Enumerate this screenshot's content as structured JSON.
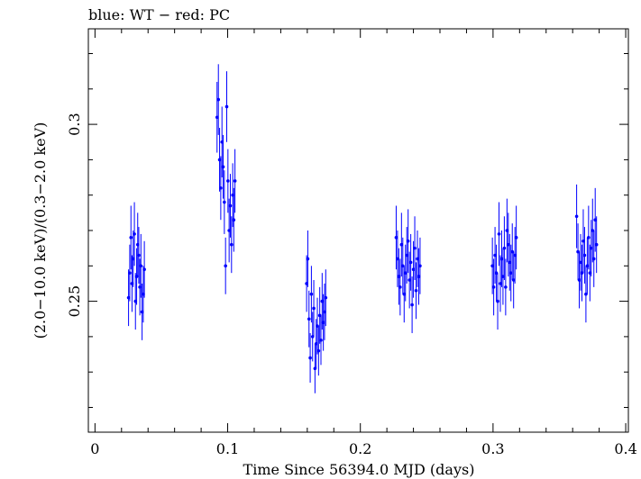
{
  "chart_data": {
    "type": "scatter",
    "title": "blue: WT − red: PC",
    "xlabel": "Time Since 56394.0 MJD (days)",
    "ylabel": "(2.0−10.0 keV)/(0.3−2.0 keV)",
    "xlim": [
      -0.005,
      0.402
    ],
    "ylim": [
      0.213,
      0.327
    ],
    "x_ticks": [
      0,
      0.1,
      0.2,
      0.3,
      0.4
    ],
    "x_tick_labels": [
      "0",
      "0.1",
      "0.2",
      "0.3",
      "0.4"
    ],
    "y_ticks": [
      0.25,
      0.3
    ],
    "y_tick_labels": [
      "0.25",
      "0.3"
    ],
    "grid": false,
    "series": [
      {
        "name": "WT",
        "color": "#0000ff",
        "x": [
          0.0253,
          0.0262,
          0.0271,
          0.0279,
          0.0288,
          0.0297,
          0.0305,
          0.0314,
          0.0322,
          0.033,
          0.0338,
          0.0346,
          0.0355,
          0.0364,
          0.0372,
          0.092,
          0.093,
          0.0939,
          0.0948,
          0.0957,
          0.0966,
          0.0975,
          0.0984,
          0.0993,
          0.1002,
          0.1011,
          0.102,
          0.1029,
          0.1038,
          0.1046,
          0.1055,
          0.1595,
          0.1604,
          0.1613,
          0.1622,
          0.1631,
          0.164,
          0.1649,
          0.1658,
          0.1667,
          0.1676,
          0.1685,
          0.1694,
          0.1703,
          0.1712,
          0.1721,
          0.173,
          0.1739,
          0.227,
          0.228,
          0.229,
          0.23,
          0.231,
          0.232,
          0.233,
          0.234,
          0.235,
          0.236,
          0.237,
          0.238,
          0.239,
          0.24,
          0.241,
          0.242,
          0.243,
          0.244,
          0.245,
          0.2995,
          0.3005,
          0.3015,
          0.3025,
          0.3035,
          0.3045,
          0.3055,
          0.3065,
          0.3075,
          0.3085,
          0.3095,
          0.3105,
          0.3115,
          0.3125,
          0.3135,
          0.3145,
          0.3155,
          0.3165,
          0.3175,
          0.363,
          0.364,
          0.365,
          0.366,
          0.367,
          0.368,
          0.369,
          0.37,
          0.371,
          0.372,
          0.373,
          0.374,
          0.375,
          0.376,
          0.377,
          0.378
        ],
        "y": [
          0.251,
          0.258,
          0.268,
          0.255,
          0.262,
          0.269,
          0.25,
          0.257,
          0.266,
          0.263,
          0.254,
          0.26,
          0.247,
          0.252,
          0.259,
          0.302,
          0.307,
          0.29,
          0.282,
          0.295,
          0.288,
          0.278,
          0.26,
          0.305,
          0.284,
          0.27,
          0.277,
          0.266,
          0.28,
          0.273,
          0.284,
          0.255,
          0.262,
          0.245,
          0.234,
          0.252,
          0.24,
          0.248,
          0.231,
          0.238,
          0.243,
          0.236,
          0.246,
          0.239,
          0.25,
          0.244,
          0.247,
          0.251,
          0.268,
          0.262,
          0.257,
          0.254,
          0.266,
          0.26,
          0.252,
          0.258,
          0.263,
          0.267,
          0.256,
          0.261,
          0.249,
          0.259,
          0.265,
          0.253,
          0.262,
          0.257,
          0.26,
          0.26,
          0.254,
          0.263,
          0.258,
          0.25,
          0.269,
          0.255,
          0.262,
          0.257,
          0.265,
          0.254,
          0.27,
          0.266,
          0.261,
          0.258,
          0.264,
          0.256,
          0.263,
          0.268,
          0.274,
          0.264,
          0.256,
          0.261,
          0.258,
          0.267,
          0.263,
          0.252,
          0.26,
          0.268,
          0.258,
          0.265,
          0.27,
          0.262,
          0.273,
          0.266
        ],
        "yerr": [
          0.008,
          0.008,
          0.009,
          0.008,
          0.008,
          0.009,
          0.008,
          0.008,
          0.009,
          0.008,
          0.008,
          0.009,
          0.008,
          0.008,
          0.008,
          0.01,
          0.01,
          0.009,
          0.009,
          0.01,
          0.009,
          0.009,
          0.008,
          0.01,
          0.009,
          0.009,
          0.009,
          0.008,
          0.009,
          0.009,
          0.009,
          0.008,
          0.008,
          0.008,
          0.007,
          0.008,
          0.007,
          0.008,
          0.007,
          0.007,
          0.008,
          0.007,
          0.008,
          0.007,
          0.008,
          0.008,
          0.008,
          0.008,
          0.009,
          0.008,
          0.008,
          0.008,
          0.009,
          0.008,
          0.008,
          0.008,
          0.008,
          0.009,
          0.008,
          0.008,
          0.008,
          0.008,
          0.009,
          0.008,
          0.008,
          0.008,
          0.008,
          0.008,
          0.008,
          0.008,
          0.008,
          0.008,
          0.009,
          0.008,
          0.008,
          0.008,
          0.009,
          0.008,
          0.009,
          0.009,
          0.008,
          0.008,
          0.008,
          0.008,
          0.008,
          0.009,
          0.009,
          0.008,
          0.008,
          0.008,
          0.008,
          0.009,
          0.008,
          0.008,
          0.008,
          0.009,
          0.008,
          0.008,
          0.009,
          0.008,
          0.009,
          0.008
        ]
      },
      {
        "name": "PC",
        "color": "#ff0000",
        "x": [],
        "y": [],
        "yerr": []
      }
    ]
  }
}
